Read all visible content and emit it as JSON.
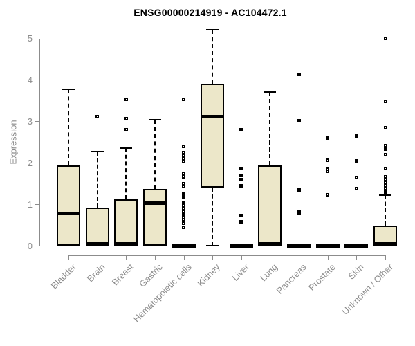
{
  "title": "ENSG00000214919 - AC104472.1",
  "chart_data": {
    "type": "boxplot",
    "title": "ENSG00000214919 - AC104472.1",
    "xlabel": "",
    "ylabel": "Expression",
    "ylim": [
      0,
      5
    ],
    "yticks": [
      0,
      1,
      2,
      3,
      4,
      5
    ],
    "grid": false,
    "legend": "none",
    "categories": [
      "Bladder",
      "Brain",
      "Breast",
      "Gastric",
      "Hematopoietic cells",
      "Kidney",
      "Liver",
      "Lung",
      "Pancreas",
      "Prostate",
      "Skin",
      "Unknown / Other"
    ],
    "series": [
      {
        "name": "Bladder",
        "q1": 0,
        "median": 0.78,
        "q3": 1.94,
        "whisker_low": 0,
        "whisker_high": 3.77,
        "outliers": []
      },
      {
        "name": "Brain",
        "q1": 0,
        "median": 0.03,
        "q3": 0.92,
        "whisker_low": 0,
        "whisker_high": 2.27,
        "outliers": [
          3.12
        ]
      },
      {
        "name": "Breast",
        "q1": 0,
        "median": 0.03,
        "q3": 1.12,
        "whisker_low": 0,
        "whisker_high": 2.35,
        "outliers": [
          3.54,
          3.07,
          2.79
        ]
      },
      {
        "name": "Gastric",
        "q1": 0,
        "median": 1.02,
        "q3": 1.37,
        "whisker_low": 0,
        "whisker_high": 3.04,
        "outliers": []
      },
      {
        "name": "Hematopoietic cells",
        "q1": 0,
        "median": 0.0,
        "q3": 0,
        "whisker_low": 0,
        "whisker_high": 0,
        "outliers": [
          3.54,
          2.39,
          2.25,
          2.18,
          2.1,
          2.03,
          1.75,
          1.67,
          1.5,
          1.43,
          1.25,
          1.18,
          1.03,
          0.97,
          0.9,
          0.82,
          0.75,
          0.68,
          0.62,
          0.55,
          0.45
        ]
      },
      {
        "name": "Kidney",
        "q1": 1.4,
        "median": 3.12,
        "q3": 3.9,
        "whisker_low": 0,
        "whisker_high": 5.21,
        "outliers": []
      },
      {
        "name": "Liver",
        "q1": 0,
        "median": 0.0,
        "q3": 0,
        "whisker_low": 0,
        "whisker_high": 0,
        "outliers": [
          2.79,
          1.87,
          1.7,
          1.59,
          1.45,
          0.73,
          0.58
        ]
      },
      {
        "name": "Lung",
        "q1": 0,
        "median": 0.03,
        "q3": 1.94,
        "whisker_low": 0,
        "whisker_high": 3.71,
        "outliers": []
      },
      {
        "name": "Pancreas",
        "q1": 0,
        "median": 0.0,
        "q3": 0,
        "whisker_low": 0,
        "whisker_high": 0,
        "outliers": [
          4.14,
          3.02,
          1.34,
          0.83,
          0.77
        ]
      },
      {
        "name": "Prostate",
        "q1": 0,
        "median": 0.0,
        "q3": 0,
        "whisker_low": 0,
        "whisker_high": 0,
        "outliers": [
          2.59,
          2.07,
          1.84,
          1.8,
          1.22
        ]
      },
      {
        "name": "Skin",
        "q1": 0,
        "median": 0.0,
        "q3": 0,
        "whisker_low": 0,
        "whisker_high": 0,
        "outliers": [
          2.64,
          2.05,
          1.64,
          1.37
        ]
      },
      {
        "name": "Unknown / Other",
        "q1": 0,
        "median": 0.03,
        "q3": 0.48,
        "whisker_low": 0,
        "whisker_high": 1.22,
        "outliers": [
          5.01,
          3.49,
          2.84,
          2.42,
          2.33,
          2.2,
          1.87,
          1.67,
          1.59,
          1.52,
          1.45,
          1.37,
          1.3
        ]
      }
    ],
    "colors": {
      "box_fill": "#ece7c9",
      "box_border": "#000000",
      "median": "#000000",
      "whisker": "#000000",
      "outlier": "#000000",
      "axis": "#8c8c8c",
      "tick_label": "#8c8c8c",
      "title": "#000000",
      "background": "#ffffff"
    }
  }
}
